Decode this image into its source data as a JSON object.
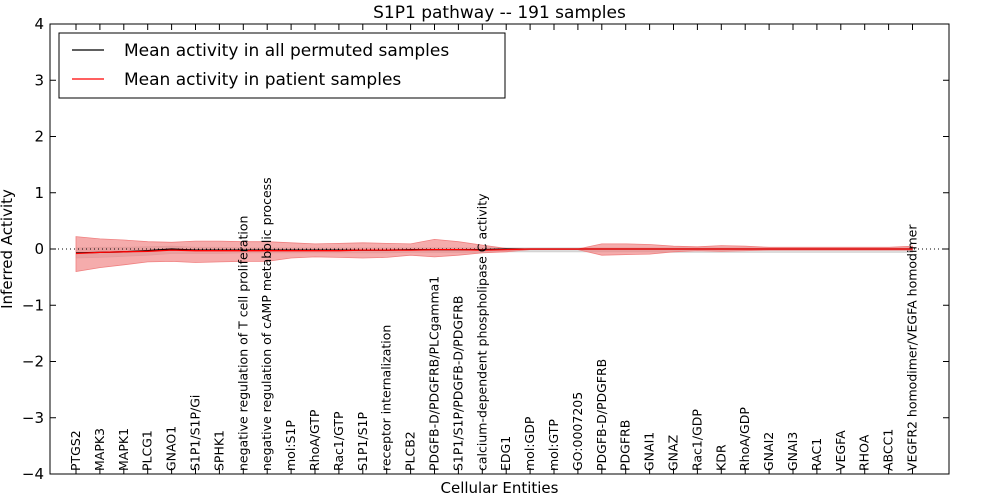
{
  "chart_data": {
    "type": "line",
    "title": "S1P1 pathway -- 191 samples",
    "xlabel": "Cellular Entities",
    "ylabel": "Inferred Activity",
    "ylim": [
      -4,
      4
    ],
    "yticks": [
      -4,
      -3,
      -2,
      -1,
      0,
      1,
      2,
      3,
      4
    ],
    "ytick_labels": [
      "−4",
      "−3",
      "−2",
      "−1",
      "0",
      "1",
      "2",
      "3",
      "4"
    ],
    "legend_position": "top-left",
    "categories": [
      "PTGS2",
      "MAPK3",
      "MAPK1",
      "PLCG1",
      "GNAO1",
      "S1P1/S1P/Gi",
      "SPHK1",
      "negative regulation of T cell proliferation",
      "negative regulation of cAMP metabolic process",
      "mol:S1P",
      "RhoA/GTP",
      "Rac1/GTP",
      "S1P1/S1P",
      "receptor internalization",
      "PLCB2",
      "PDGFB-D/PDGFRB/PLCgamma1",
      "S1P1/S1P/PDGFB-D/PDGFRB",
      "calcium-dependent phospholipase C activity",
      "EDG1",
      "mol:GDP",
      "mol:GTP",
      "GO:0007205",
      "PDGFB-D/PDGFRB",
      "PDGFRB",
      "GNAI1",
      "GNAZ",
      "Rac1/GDP",
      "KDR",
      "RhoA/GDP",
      "GNAI2",
      "GNAI3",
      "RAC1",
      "VEGFA",
      "RHOA",
      "ABCC1",
      "VEGFR2 homodimer/VEGFA homodimer"
    ],
    "series": [
      {
        "name": "Mean activity in all permuted samples",
        "color": "#000000",
        "values": [
          -0.07,
          -0.06,
          -0.05,
          -0.03,
          0.0,
          -0.02,
          -0.02,
          -0.02,
          -0.02,
          -0.02,
          -0.02,
          -0.02,
          -0.02,
          -0.02,
          -0.01,
          -0.01,
          -0.01,
          -0.01,
          0.0,
          0.0,
          0.0,
          0.0,
          0.0,
          0.0,
          0.0,
          0.0,
          0.0,
          0.0,
          0.0,
          0.0,
          0.0,
          0.0,
          0.0,
          0.0,
          0.0,
          0.0
        ],
        "band_upper": [
          0.02,
          0.03,
          0.03,
          0.04,
          0.05,
          0.03,
          0.03,
          0.02,
          0.02,
          0.02,
          0.02,
          0.02,
          0.02,
          0.02,
          0.02,
          0.02,
          0.02,
          0.02,
          0.02,
          0.02,
          0.02,
          0.02,
          0.02,
          0.02,
          0.02,
          0.02,
          0.02,
          0.02,
          0.02,
          0.02,
          0.02,
          0.02,
          0.02,
          0.02,
          0.02,
          0.02
        ],
        "band_lower": [
          -0.16,
          -0.15,
          -0.13,
          -0.11,
          -0.08,
          -0.08,
          -0.08,
          -0.07,
          -0.07,
          -0.07,
          -0.07,
          -0.07,
          -0.07,
          -0.07,
          -0.06,
          -0.06,
          -0.06,
          -0.06,
          -0.05,
          -0.05,
          -0.05,
          -0.05,
          -0.05,
          -0.05,
          -0.05,
          -0.06,
          -0.06,
          -0.06,
          -0.06,
          -0.06,
          -0.06,
          -0.06,
          -0.06,
          -0.06,
          -0.06,
          -0.06
        ],
        "band_color": "#d0d0d0"
      },
      {
        "name": "Mean activity in patient samples",
        "color": "#ff0000",
        "values": [
          -0.08,
          -0.06,
          -0.05,
          -0.04,
          -0.02,
          -0.03,
          -0.03,
          -0.03,
          -0.03,
          -0.03,
          -0.03,
          -0.03,
          -0.02,
          -0.02,
          -0.02,
          -0.01,
          -0.01,
          -0.02,
          -0.01,
          0.0,
          0.0,
          0.0,
          0.0,
          0.0,
          0.0,
          0.0,
          0.0,
          0.0,
          0.0,
          0.0,
          0.0,
          0.0,
          0.0,
          0.0,
          0.0,
          0.0
        ],
        "band_upper": [
          0.22,
          0.18,
          0.16,
          0.13,
          0.12,
          0.14,
          0.14,
          0.13,
          0.13,
          0.11,
          0.09,
          0.1,
          0.11,
          0.1,
          0.09,
          0.17,
          0.13,
          0.07,
          0.01,
          0.0,
          0.0,
          0.0,
          0.09,
          0.09,
          0.08,
          0.05,
          0.04,
          0.06,
          0.05,
          0.03,
          0.03,
          0.03,
          0.03,
          0.03,
          0.03,
          0.05
        ],
        "band_lower": [
          -0.4,
          -0.33,
          -0.28,
          -0.23,
          -0.22,
          -0.24,
          -0.23,
          -0.22,
          -0.22,
          -0.16,
          -0.14,
          -0.15,
          -0.16,
          -0.15,
          -0.11,
          -0.14,
          -0.11,
          -0.07,
          -0.05,
          -0.01,
          -0.01,
          -0.01,
          -0.11,
          -0.1,
          -0.09,
          -0.05,
          -0.03,
          -0.04,
          -0.03,
          -0.02,
          -0.02,
          -0.02,
          -0.02,
          -0.02,
          -0.02,
          -0.02
        ],
        "band_color": "#f08080"
      }
    ],
    "zero_line": {
      "value": 0,
      "style": "dotted"
    }
  }
}
